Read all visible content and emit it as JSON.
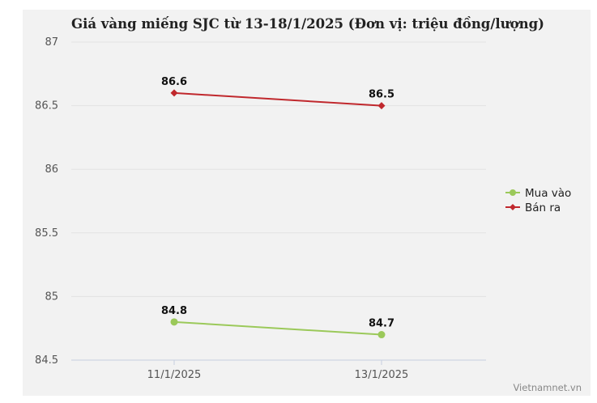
{
  "chart_data": {
    "type": "line",
    "title": "Giá vàng miếng SJC từ 13-18/1/2025 (Đơn vị: triệu đồng/lượng)",
    "xlabel": "",
    "ylabel": "",
    "categories": [
      "11/1/2025",
      "13/1/2025"
    ],
    "ylim": [
      84.5,
      87
    ],
    "yticks": [
      "87",
      "86.5",
      "86",
      "85.5",
      "85",
      "84.5"
    ],
    "ytick_values": [
      87,
      86.5,
      86,
      85.5,
      85,
      84.5
    ],
    "grid": true,
    "legend": "right",
    "series": [
      {
        "name": "Mua vào",
        "values": [
          84.8,
          84.7
        ],
        "labels": [
          "84.8",
          "84.7"
        ],
        "color": "#9bc95a",
        "marker": "circle"
      },
      {
        "name": "Bán ra",
        "values": [
          86.6,
          86.5
        ],
        "labels": [
          "86.6",
          "86.5"
        ],
        "color": "#c0282d",
        "marker": "diamond"
      }
    ]
  },
  "credit": "Vietnamnet.vn"
}
